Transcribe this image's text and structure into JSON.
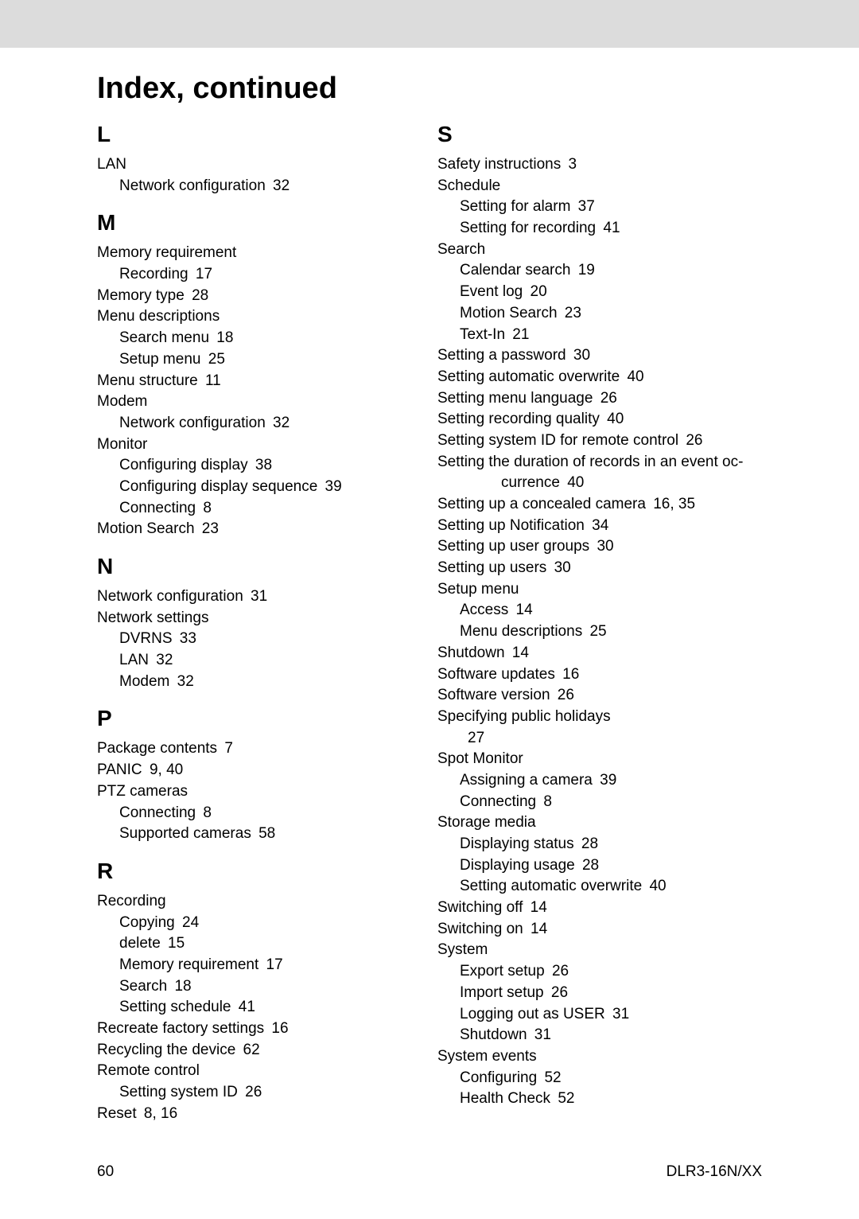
{
  "title": "Index, continued",
  "left_column": {
    "sections": [
      {
        "letter": "L",
        "items": [
          {
            "text": "LAN",
            "level": 0
          },
          {
            "text": "Network configuration",
            "page": "32",
            "level": 1
          }
        ]
      },
      {
        "letter": "M",
        "items": [
          {
            "text": "Memory requirement",
            "level": 0
          },
          {
            "text": "Recording",
            "page": "17",
            "level": 1
          },
          {
            "text": "Memory type",
            "page": "28",
            "level": 0
          },
          {
            "text": "Menu descriptions",
            "level": 0
          },
          {
            "text": "Search menu",
            "page": "18",
            "level": 1
          },
          {
            "text": "Setup menu",
            "page": "25",
            "level": 1
          },
          {
            "text": "Menu structure",
            "page": "11",
            "level": 0
          },
          {
            "text": "Modem",
            "level": 0
          },
          {
            "text": "Network configuration",
            "page": "32",
            "level": 1
          },
          {
            "text": "Monitor",
            "level": 0
          },
          {
            "text": "Configuring display",
            "page": "38",
            "level": 1
          },
          {
            "text": "Configuring display sequence",
            "page": "39",
            "level": 1
          },
          {
            "text": "Connecting",
            "page": "8",
            "level": 1
          },
          {
            "text": "Motion Search",
            "page": "23",
            "level": 0
          }
        ]
      },
      {
        "letter": "N",
        "items": [
          {
            "text": "Network configuration",
            "page": "31",
            "level": 0
          },
          {
            "text": "Network settings",
            "level": 0
          },
          {
            "text": "DVRNS",
            "page": "33",
            "level": 1
          },
          {
            "text": "LAN",
            "page": "32",
            "level": 1
          },
          {
            "text": "Modem",
            "page": "32",
            "level": 1
          }
        ]
      },
      {
        "letter": "P",
        "items": [
          {
            "text": "Package contents",
            "page": "7",
            "level": 0
          },
          {
            "text": "PANIC",
            "page": "9, 40",
            "level": 0
          },
          {
            "text": "PTZ cameras",
            "level": 0
          },
          {
            "text": "Connecting",
            "page": "8",
            "level": 1
          },
          {
            "text": "Supported cameras",
            "page": "58",
            "level": 1
          }
        ]
      },
      {
        "letter": "R",
        "items": [
          {
            "text": "Recording",
            "level": 0
          },
          {
            "text": "Copying",
            "page": "24",
            "level": 1
          },
          {
            "text": "delete",
            "page": "15",
            "level": 1
          },
          {
            "text": "Memory requirement",
            "page": "17",
            "level": 1
          },
          {
            "text": "Search",
            "page": "18",
            "level": 1
          },
          {
            "text": "Setting schedule",
            "page": "41",
            "level": 1
          },
          {
            "text": "Recreate factory settings",
            "page": "16",
            "level": 0
          },
          {
            "text": "Recycling the device",
            "page": "62",
            "level": 0
          },
          {
            "text": "Remote control",
            "level": 0
          },
          {
            "text": "Setting system ID",
            "page": "26",
            "level": 1
          },
          {
            "text": "Reset",
            "page": "8, 16",
            "level": 0
          }
        ]
      }
    ]
  },
  "right_column": {
    "sections": [
      {
        "letter": "S",
        "items": [
          {
            "text": "Safety instructions",
            "page": "3",
            "level": 0
          },
          {
            "text": "Schedule",
            "level": 0
          },
          {
            "text": "Setting for alarm",
            "page": "37",
            "level": 1
          },
          {
            "text": "Setting for recording",
            "page": "41",
            "level": 1
          },
          {
            "text": "Search",
            "level": 0
          },
          {
            "text": "Calendar search",
            "page": "19",
            "level": 1
          },
          {
            "text": "Event log",
            "page": "20",
            "level": 1
          },
          {
            "text": "Motion Search",
            "page": "23",
            "level": 1
          },
          {
            "text": "Text-In",
            "page": "21",
            "level": 1
          },
          {
            "text": "Setting a password",
            "page": "30",
            "level": 0
          },
          {
            "text": "Setting automatic overwrite",
            "page": "40",
            "level": 0
          },
          {
            "text": "Setting menu language",
            "page": "26",
            "level": 0
          },
          {
            "text": "Setting recording quality",
            "page": "40",
            "level": 0
          },
          {
            "text": "Setting system ID for remote control",
            "page": "26",
            "level": 0
          },
          {
            "text": "Setting the duration of records in an event oc-",
            "level": 0
          },
          {
            "text": "currence",
            "page": "40",
            "level": 2
          },
          {
            "text": "Setting up a concealed camera",
            "page": "16, 35",
            "level": 0
          },
          {
            "text": "Setting up Notification",
            "page": "34",
            "level": 0
          },
          {
            "text": "Setting up user groups",
            "page": "30",
            "level": 0
          },
          {
            "text": "Setting up users",
            "page": "30",
            "level": 0
          },
          {
            "text": "Setup menu",
            "level": 0
          },
          {
            "text": "Access",
            "page": "14",
            "level": 1
          },
          {
            "text": "Menu descriptions",
            "page": "25",
            "level": 1
          },
          {
            "text": "Shutdown",
            "page": "14",
            "level": 0
          },
          {
            "text": "Software updates",
            "page": "16",
            "level": 0
          },
          {
            "text": "Software version",
            "page": "26",
            "level": 0
          },
          {
            "text": "Specifying public holidays",
            "level": 0
          },
          {
            "text": "27",
            "level": 3
          },
          {
            "text": "Spot Monitor",
            "level": 0
          },
          {
            "text": "Assigning a camera",
            "page": "39",
            "level": 1
          },
          {
            "text": "Connecting",
            "page": "8",
            "level": 1
          },
          {
            "text": "Storage media",
            "level": 0
          },
          {
            "text": "Displaying status",
            "page": "28",
            "level": 1
          },
          {
            "text": "Displaying usage",
            "page": "28",
            "level": 1
          },
          {
            "text": "Setting automatic overwrite",
            "page": "40",
            "level": 1
          },
          {
            "text": "Switching off",
            "page": "14",
            "level": 0
          },
          {
            "text": "Switching on",
            "page": "14",
            "level": 0
          },
          {
            "text": "System",
            "level": 0
          },
          {
            "text": "Export setup",
            "page": "26",
            "level": 1
          },
          {
            "text": "Import setup",
            "page": "26",
            "level": 1
          },
          {
            "text": "Logging out as USER",
            "page": "31",
            "level": 1
          },
          {
            "text": "Shutdown",
            "page": "31",
            "level": 1
          },
          {
            "text": "System events",
            "level": 0
          },
          {
            "text": "Configuring",
            "page": "52",
            "level": 1
          },
          {
            "text": "Health Check",
            "page": "52",
            "level": 1
          }
        ]
      }
    ]
  },
  "footer": {
    "page_number": "60",
    "doc_id": "DLR3-16N/XX"
  }
}
